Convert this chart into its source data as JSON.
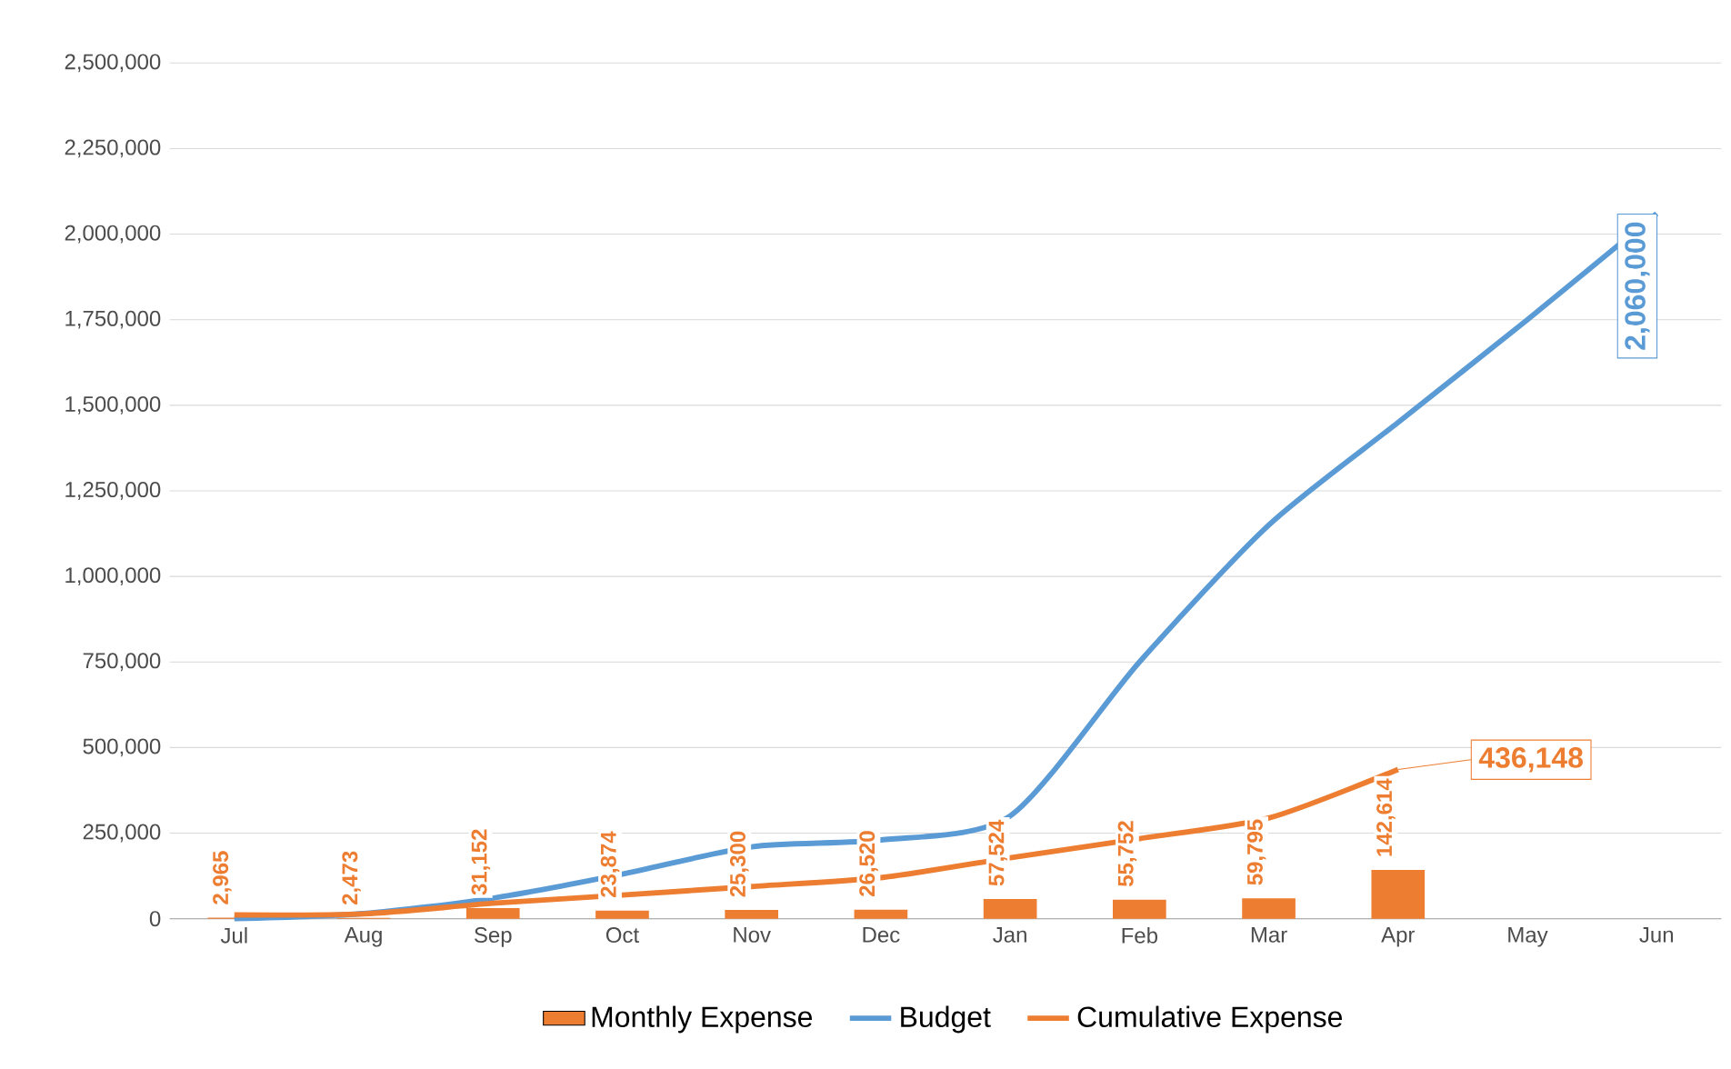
{
  "chart_data": {
    "type": "line",
    "categories": [
      "Jul",
      "Aug",
      "Sep",
      "Oct",
      "Nov",
      "Dec",
      "Jan",
      "Feb",
      "Mar",
      "Apr",
      "May",
      "Jun"
    ],
    "series": [
      {
        "name": "Monthly Expense",
        "type": "bar",
        "color": "#ed7d31",
        "values": [
          2965,
          2473,
          31152,
          23874,
          25300,
          26520,
          57524,
          55752,
          59795,
          142614,
          null,
          null
        ],
        "value_labels": [
          "2,965",
          "2,473",
          "31,152",
          "23,874",
          "25,300",
          "26,520",
          "57,524",
          "55,752",
          "59,795",
          "142,614",
          null,
          null
        ]
      },
      {
        "name": "Budget",
        "color": "#5b9bd5",
        "values": [
          0,
          15000,
          60000,
          130000,
          210000,
          230000,
          300000,
          750000,
          1150000,
          1450000,
          1750000,
          2060000
        ],
        "value_labels": [
          null,
          null,
          null,
          null,
          null,
          null,
          null,
          null,
          null,
          null,
          null,
          "2,060,000"
        ]
      },
      {
        "name": "Cumulative Expense",
        "color": "#ed7d31",
        "values": [
          11000,
          14000,
          45000,
          69000,
          94000,
          120000,
          178000,
          234000,
          294000,
          436148,
          null,
          null
        ],
        "value_labels": [
          null,
          null,
          null,
          null,
          null,
          null,
          null,
          null,
          null,
          "436,148",
          null,
          null
        ]
      }
    ],
    "ylim": [
      0,
      2500000
    ],
    "yticks": [
      {
        "value": 0,
        "label": "0"
      },
      {
        "value": 250000,
        "label": "250,000"
      },
      {
        "value": 500000,
        "label": "500,000"
      },
      {
        "value": 750000,
        "label": "750,000"
      },
      {
        "value": 1000000,
        "label": "1,000,000"
      },
      {
        "value": 1250000,
        "label": "1,250,000"
      },
      {
        "value": 1500000,
        "label": "1,500,000"
      },
      {
        "value": 1750000,
        "label": "1,750,000"
      },
      {
        "value": 2000000,
        "label": "2,000,000"
      },
      {
        "value": 2250000,
        "label": "2,250,000"
      },
      {
        "value": 2500000,
        "label": "2,500,000"
      }
    ],
    "grid": "y",
    "legend": "bottom",
    "marker": "none",
    "line_style": "solid"
  }
}
